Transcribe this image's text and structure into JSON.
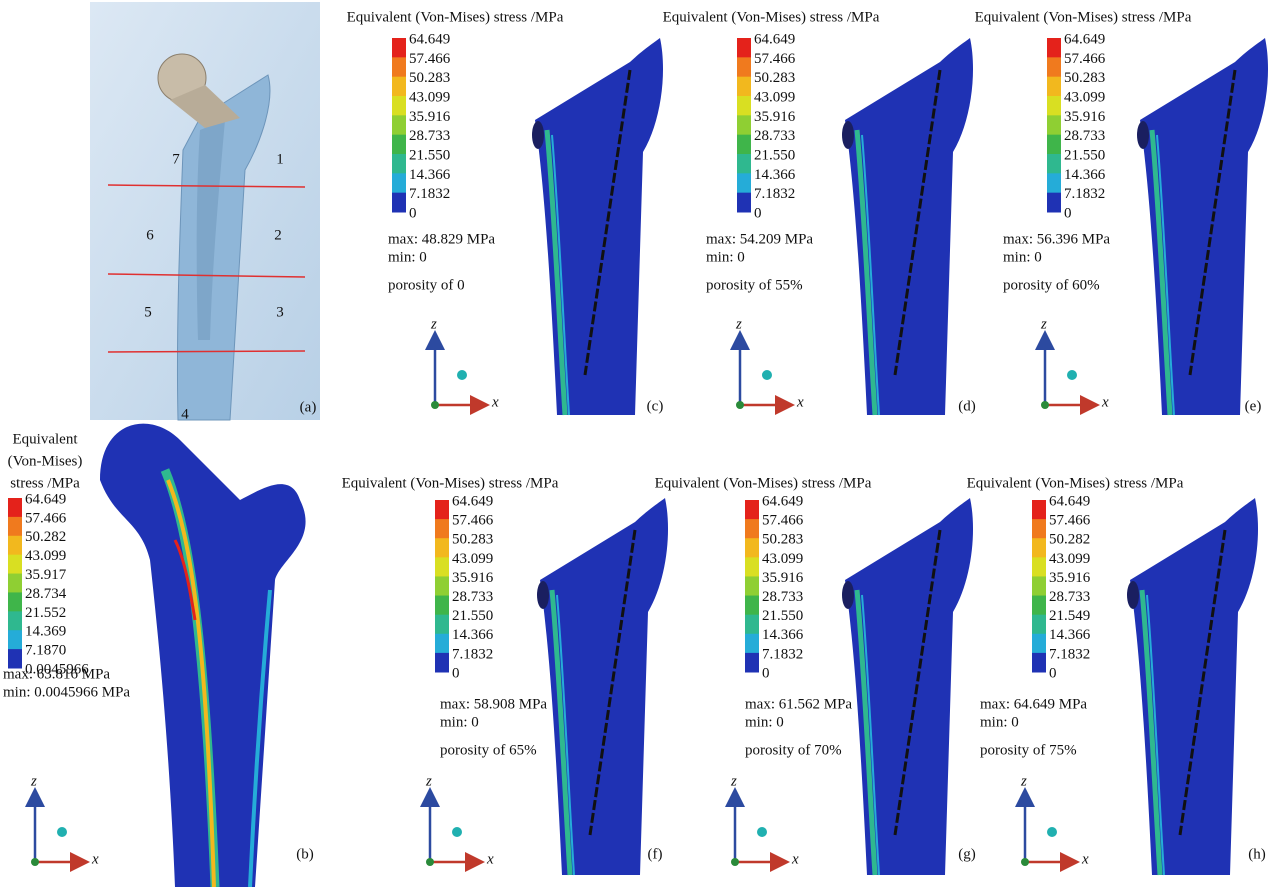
{
  "figure_a": {
    "zones": [
      "7",
      "1",
      "6",
      "2",
      "5",
      "3",
      "4"
    ],
    "panel_label": "(a)"
  },
  "panels": [
    {
      "panel_label": "(b)",
      "title_lines": [
        "Equivalent",
        "(Von-Mises)",
        "stress /MPa"
      ],
      "scale": [
        "64.649",
        "57.466",
        "50.282",
        "43.099",
        "35.917",
        "28.734",
        "21.552",
        "14.369",
        "7.1870",
        "0.0045966"
      ],
      "max": "max: 63.816 MPa",
      "min": "min: 0.0045966 MPa",
      "axis_z": "z",
      "axis_x": "x"
    },
    {
      "panel_label": "(c)",
      "title_lines": [
        "Equivalent (Von-Mises) stress /MPa"
      ],
      "scale": [
        "64.649",
        "57.466",
        "50.283",
        "43.099",
        "35.916",
        "28.733",
        "21.550",
        "14.366",
        "7.1832",
        "0"
      ],
      "max": "max: 48.829 MPa",
      "min": "min: 0",
      "porosity": "porosity of 0",
      "axis_z": "z",
      "axis_x": "x"
    },
    {
      "panel_label": "(d)",
      "title_lines": [
        "Equivalent (Von-Mises) stress /MPa"
      ],
      "scale": [
        "64.649",
        "57.466",
        "50.283",
        "43.099",
        "35.916",
        "28.733",
        "21.550",
        "14.366",
        "7.1832",
        "0"
      ],
      "max": "max: 54.209 MPa",
      "min": "min: 0",
      "porosity": "porosity of 55%",
      "axis_z": "z",
      "axis_x": "x"
    },
    {
      "panel_label": "(e)",
      "title_lines": [
        "Equivalent (Von-Mises) stress /MPa"
      ],
      "scale": [
        "64.649",
        "57.466",
        "50.283",
        "43.099",
        "35.916",
        "28.733",
        "21.550",
        "14.366",
        "7.1832",
        "0"
      ],
      "max": "max: 56.396 MPa",
      "min": "min: 0",
      "porosity": "porosity of 60%",
      "axis_z": "z",
      "axis_x": "x"
    },
    {
      "panel_label": "(f)",
      "title_lines": [
        "Equivalent (Von-Mises) stress /MPa"
      ],
      "scale": [
        "64.649",
        "57.466",
        "50.283",
        "43.099",
        "35.916",
        "28.733",
        "21.550",
        "14.366",
        "7.1832",
        "0"
      ],
      "max": "max: 58.908 MPa",
      "min": "min: 0",
      "porosity": "porosity of 65%",
      "axis_z": "z",
      "axis_x": "x"
    },
    {
      "panel_label": "(g)",
      "title_lines": [
        "Equivalent (Von-Mises) stress /MPa"
      ],
      "scale": [
        "64.649",
        "57.466",
        "50.283",
        "43.099",
        "35.916",
        "28.733",
        "21.550",
        "14.366",
        "7.1832",
        "0"
      ],
      "max": "max: 61.562 MPa",
      "min": "min: 0",
      "porosity": "porosity of 70%",
      "axis_z": "z",
      "axis_x": "x"
    },
    {
      "panel_label": "(h)",
      "title_lines": [
        "Equivalent (Von-Mises) stress /MPa"
      ],
      "scale": [
        "64.649",
        "57.466",
        "50.282",
        "43.099",
        "35.916",
        "28.733",
        "21.549",
        "14.366",
        "7.1832",
        "0"
      ],
      "max": "max: 64.649 MPa",
      "min": "min: 0",
      "porosity": "porosity of 75%",
      "axis_z": "z",
      "axis_x": "x"
    }
  ]
}
